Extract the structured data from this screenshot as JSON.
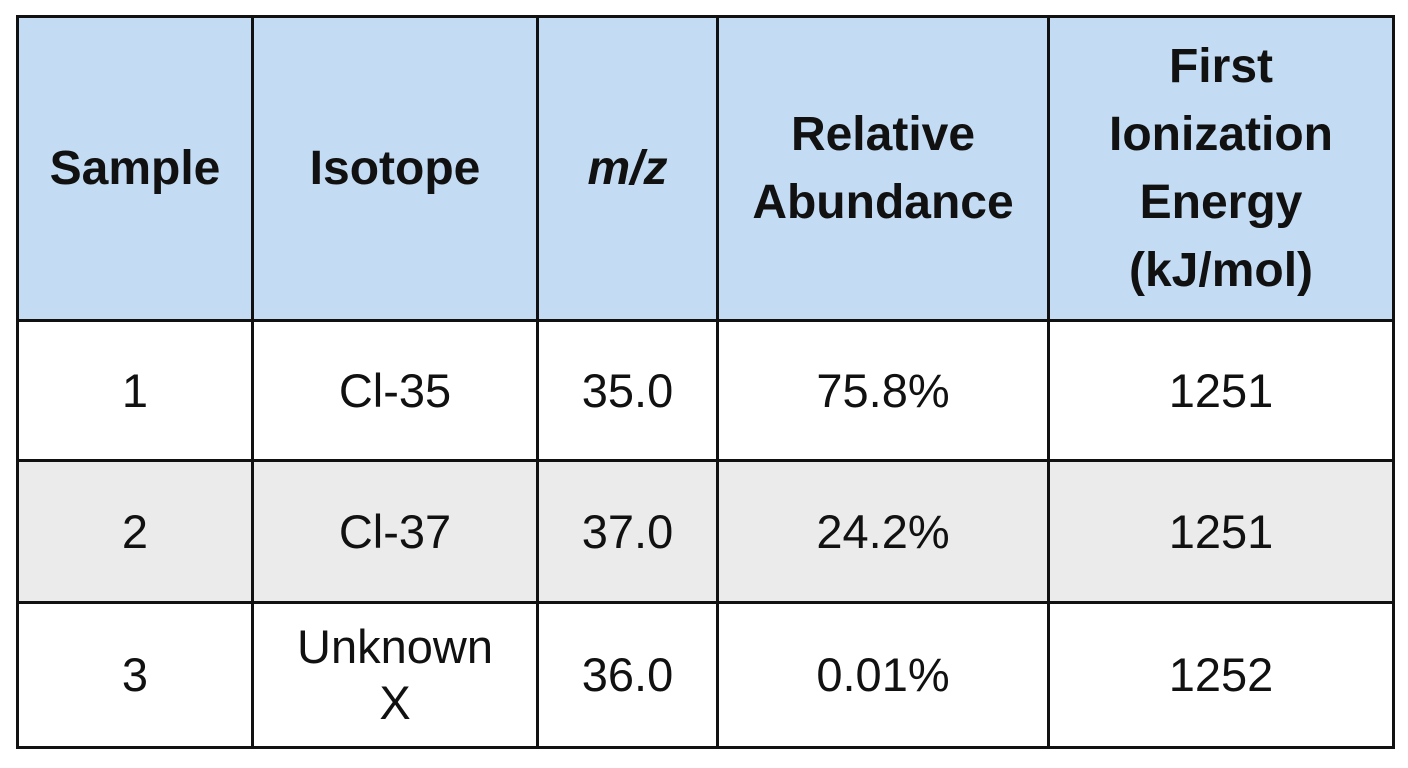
{
  "table": {
    "headers": {
      "sample": "Sample",
      "isotope": "Isotope",
      "mz": "m/z",
      "abundance": [
        "Relative",
        "Abundance"
      ],
      "ionization": [
        "First",
        "Ionization",
        "Energy",
        "(kJ/mol)"
      ]
    },
    "rows": [
      {
        "sample": "1",
        "isotope": "Cl-35",
        "mz": "35.0",
        "abundance": "75.8%",
        "ionization": "1251"
      },
      {
        "sample": "2",
        "isotope": "Cl-37",
        "mz": "37.0",
        "abundance": "24.2%",
        "ionization": "1251"
      },
      {
        "sample": "3",
        "isotope": [
          "Unknown",
          "X"
        ],
        "mz": "36.0",
        "abundance": "0.01%",
        "ionization": "1252"
      }
    ]
  },
  "colors": {
    "header_bg": "#c3dbf3",
    "striped_row_bg": "#ebebeb",
    "border": "#111111"
  }
}
